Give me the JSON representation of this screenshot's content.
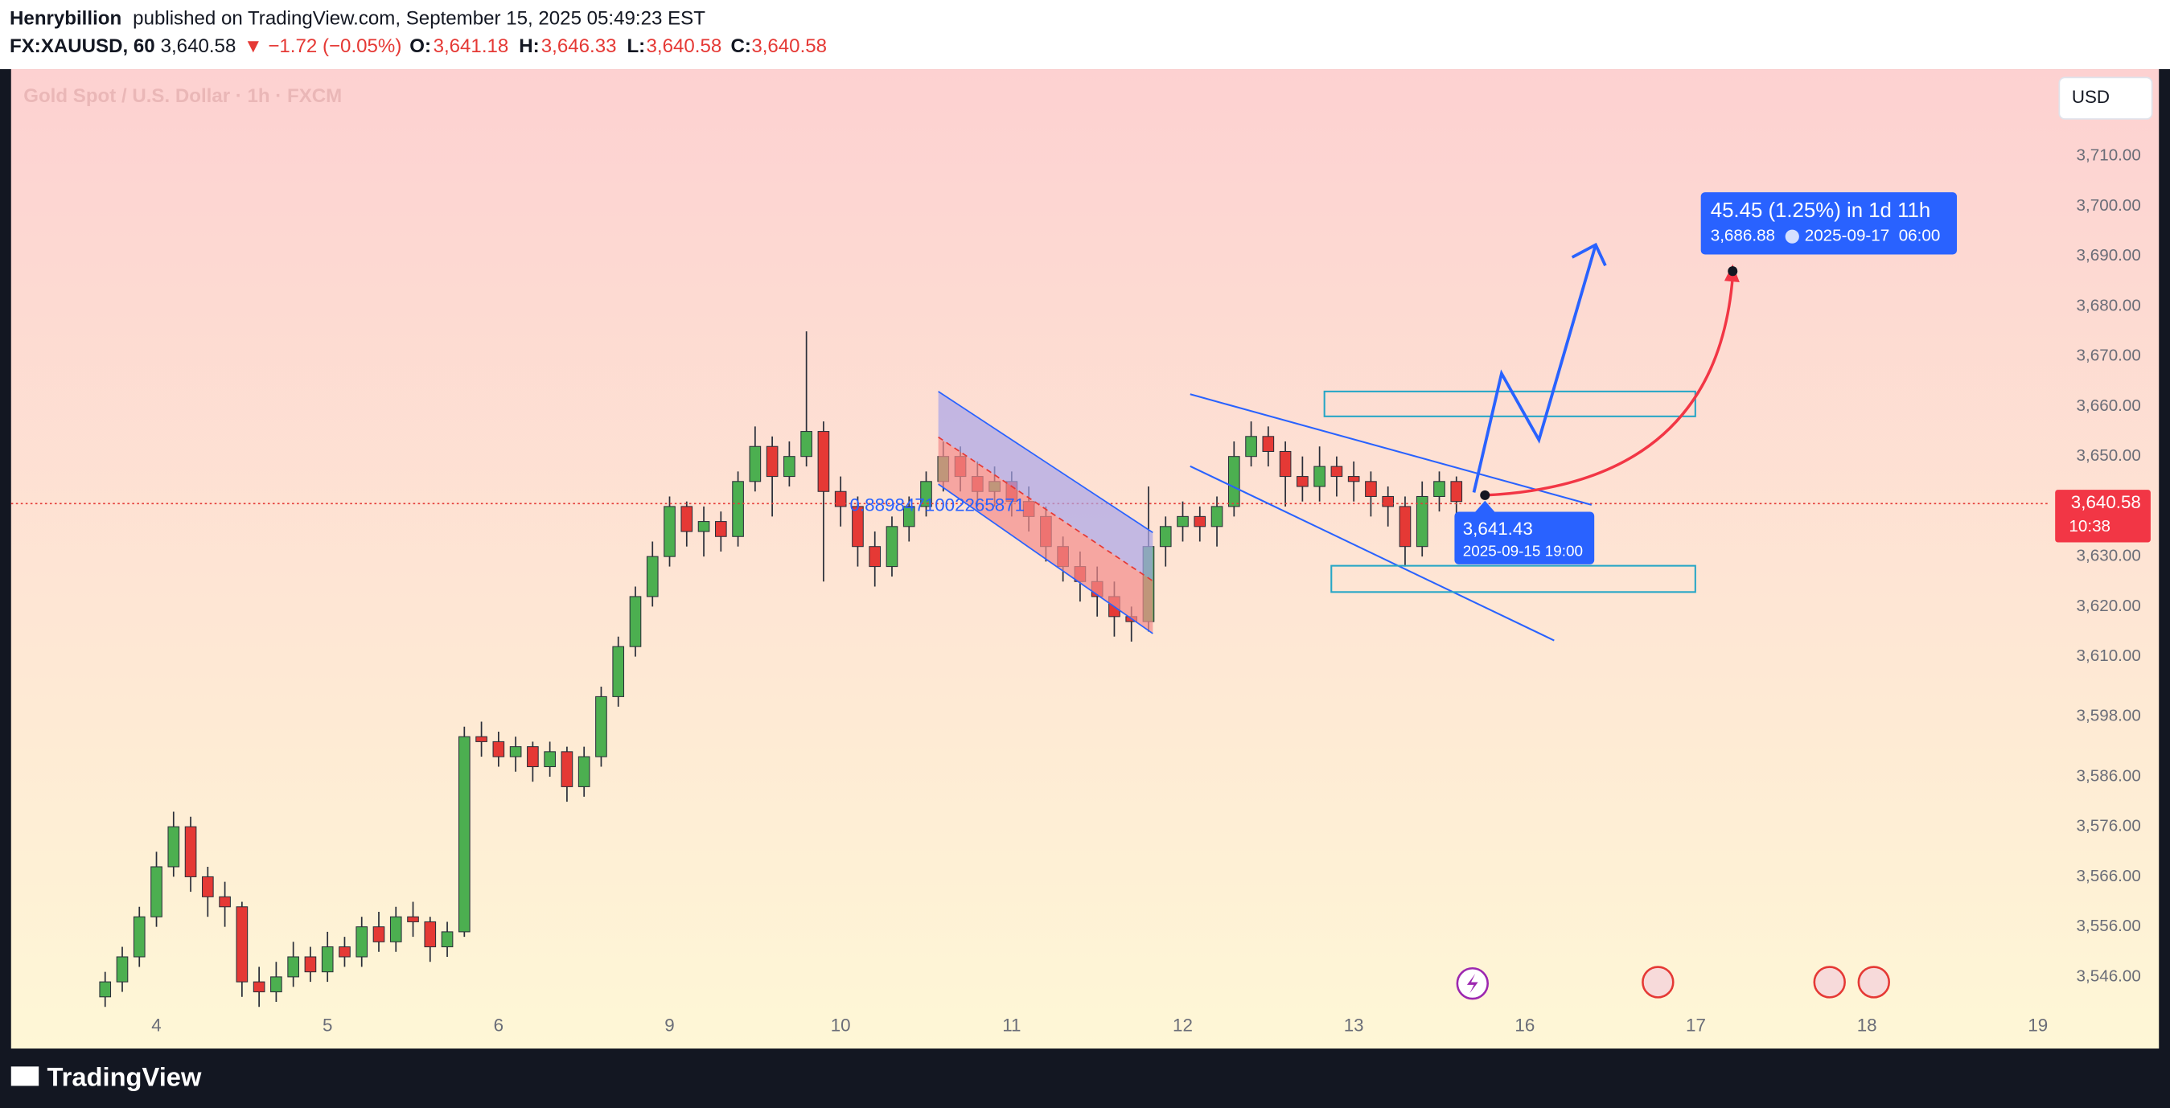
{
  "header": {
    "author": "Henrybillion",
    "published": "published on TradingView.com, September 15, 2025 05:49:23 EST",
    "symbol": "FX:XAUUSD, 60",
    "price": "3,640.58",
    "change": "▼ −1.72 (−0.05%)",
    "ohlc": [
      {
        "key": "O:",
        "value": "3,641.18"
      },
      {
        "key": "H:",
        "value": "3,646.33"
      },
      {
        "key": "L:",
        "value": "3,640.58"
      },
      {
        "key": "C:",
        "value": "3,640.58"
      }
    ]
  },
  "currency": "USD",
  "footer": "TradingView",
  "annotations": {
    "target": "45.45 (1.25%) in 1d 11h",
    "target_price": "3,686.88",
    "target_time": "2025-09-17  06:00",
    "point_price": "3,641.43",
    "point_time": "2025-09-15 19:00",
    "channel_label": "0.8898471002265871"
  },
  "chart_data": {
    "type": "candlestick",
    "title": "Gold Spot / U.S. Dollar · 1h · FXCM",
    "up_color": "#4caf50",
    "down_color": "#e53935",
    "wick_color": "#2a2e39",
    "grid": false,
    "xlim": [
      -0.85,
      11.06
    ],
    "ylim": [
      3540.8,
      3727.4
    ],
    "xticks": [
      {
        "value": 0,
        "label": "4"
      },
      {
        "value": 1,
        "label": "5"
      },
      {
        "value": 2,
        "label": "6"
      },
      {
        "value": 3,
        "label": "9"
      },
      {
        "value": 4,
        "label": "10"
      },
      {
        "value": 5,
        "label": "11"
      },
      {
        "value": 6,
        "label": "12"
      },
      {
        "value": 7,
        "label": "13"
      },
      {
        "value": 8,
        "label": "16"
      },
      {
        "value": 9,
        "label": "17"
      },
      {
        "value": 10,
        "label": "18"
      },
      {
        "value": 11,
        "label": "19"
      }
    ],
    "yticks": [
      {
        "value": 3546,
        "label": "3,546.00"
      },
      {
        "value": 3556,
        "label": "3,556.00"
      },
      {
        "value": 3566,
        "label": "3,566.00"
      },
      {
        "value": 3576,
        "label": "3,576.00"
      },
      {
        "value": 3586,
        "label": "3,586.00"
      },
      {
        "value": 3598,
        "label": "3,598.00"
      },
      {
        "value": 3610,
        "label": "3,610.00"
      },
      {
        "value": 3620,
        "label": "3,620.00"
      },
      {
        "value": 3630,
        "label": "3,630.00"
      },
      {
        "value": 3650,
        "label": "3,650.00"
      },
      {
        "value": 3660,
        "label": "3,660.00"
      },
      {
        "value": 3670,
        "label": "3,670.00"
      },
      {
        "value": 3680,
        "label": "3,680.00"
      },
      {
        "value": 3690,
        "label": "3,690.00"
      },
      {
        "value": 3700,
        "label": "3,700.00"
      },
      {
        "value": 3710,
        "label": "3,710.00"
      }
    ],
    "last_price": {
      "value": 3640.58,
      "label": "3,640.58"
    },
    "countdown": "10:38",
    "x": [
      -0.3,
      -0.2,
      -0.1,
      0,
      0.1,
      0.2,
      0.3,
      0.4,
      0.5,
      0.6,
      0.7,
      0.8,
      0.9,
      1,
      1.1,
      1.2,
      1.3,
      1.4,
      1.5,
      1.6,
      1.7,
      1.8,
      1.9,
      2,
      2.1,
      2.2,
      2.3,
      2.4,
      2.5,
      2.6,
      2.7,
      2.8,
      2.9,
      3,
      3.1,
      3.2,
      3.3,
      3.4,
      3.5,
      3.6,
      3.7,
      3.8,
      3.9,
      4,
      4.1,
      4.2,
      4.3,
      4.4,
      4.5,
      4.6,
      4.7,
      4.8,
      4.9,
      5,
      5.1,
      5.2,
      5.3,
      5.4,
      5.5,
      5.6,
      5.7,
      5.8,
      5.9,
      6,
      6.1,
      6.2,
      6.3,
      6.4,
      6.5,
      6.6,
      6.7,
      6.8,
      6.9,
      7,
      7.1,
      7.2,
      7.3,
      7.4,
      7.5,
      7.6
    ],
    "ohlc": [
      [
        3542,
        3547,
        3540,
        3545
      ],
      [
        3545,
        3552,
        3543,
        3550
      ],
      [
        3550,
        3560,
        3548,
        3558
      ],
      [
        3558,
        3571,
        3556,
        3568
      ],
      [
        3568,
        3579,
        3566,
        3576
      ],
      [
        3576,
        3578,
        3563,
        3566
      ],
      [
        3566,
        3568,
        3558,
        3562
      ],
      [
        3562,
        3565,
        3556,
        3560
      ],
      [
        3560,
        3561,
        3542,
        3545
      ],
      [
        3545,
        3548,
        3540,
        3543
      ],
      [
        3543,
        3549,
        3541,
        3546
      ],
      [
        3546,
        3553,
        3544,
        3550
      ],
      [
        3550,
        3552,
        3545,
        3547
      ],
      [
        3547,
        3555,
        3545,
        3552
      ],
      [
        3552,
        3554,
        3548,
        3550
      ],
      [
        3550,
        3558,
        3548,
        3556
      ],
      [
        3556,
        3559,
        3551,
        3553
      ],
      [
        3553,
        3560,
        3551,
        3558
      ],
      [
        3558,
        3561,
        3554,
        3557
      ],
      [
        3557,
        3558,
        3549,
        3552
      ],
      [
        3552,
        3557,
        3550,
        3555
      ],
      [
        3555,
        3596,
        3554,
        3594
      ],
      [
        3594,
        3597,
        3590,
        3593
      ],
      [
        3593,
        3595,
        3588,
        3590
      ],
      [
        3590,
        3594,
        3587,
        3592
      ],
      [
        3592,
        3593,
        3585,
        3588
      ],
      [
        3588,
        3593,
        3586,
        3591
      ],
      [
        3591,
        3592,
        3581,
        3584
      ],
      [
        3584,
        3592,
        3582,
        3590
      ],
      [
        3590,
        3604,
        3588,
        3602
      ],
      [
        3602,
        3614,
        3600,
        3612
      ],
      [
        3612,
        3624,
        3610,
        3622
      ],
      [
        3622,
        3633,
        3620,
        3630
      ],
      [
        3630,
        3642,
        3628,
        3640
      ],
      [
        3640,
        3641,
        3632,
        3635
      ],
      [
        3635,
        3640,
        3630,
        3637
      ],
      [
        3637,
        3639,
        3631,
        3634
      ],
      [
        3634,
        3647,
        3632,
        3645
      ],
      [
        3645,
        3656,
        3643,
        3652
      ],
      [
        3652,
        3654,
        3638,
        3646
      ],
      [
        3646,
        3653,
        3644,
        3650
      ],
      [
        3650,
        3675,
        3648,
        3655
      ],
      [
        3655,
        3657,
        3625,
        3643
      ],
      [
        3643,
        3646,
        3636,
        3640
      ],
      [
        3640,
        3642,
        3628,
        3632
      ],
      [
        3632,
        3635,
        3624,
        3628
      ],
      [
        3628,
        3638,
        3626,
        3636
      ],
      [
        3636,
        3642,
        3633,
        3640
      ],
      [
        3640,
        3647,
        3638,
        3645
      ],
      [
        3645,
        3653,
        3643,
        3650
      ],
      [
        3650,
        3652,
        3643,
        3646
      ],
      [
        3646,
        3649,
        3640,
        3643
      ],
      [
        3643,
        3648,
        3640,
        3645
      ],
      [
        3645,
        3647,
        3638,
        3641
      ],
      [
        3641,
        3644,
        3635,
        3638
      ],
      [
        3638,
        3640,
        3629,
        3632
      ],
      [
        3632,
        3634,
        3625,
        3628
      ],
      [
        3628,
        3631,
        3621,
        3625
      ],
      [
        3625,
        3628,
        3618,
        3622
      ],
      [
        3622,
        3625,
        3614,
        3618
      ],
      [
        3618,
        3620,
        3613,
        3617
      ],
      [
        3617,
        3644,
        3615,
        3632
      ],
      [
        3632,
        3638,
        3628,
        3636
      ],
      [
        3636,
        3641,
        3633,
        3638
      ],
      [
        3638,
        3640,
        3633,
        3636
      ],
      [
        3636,
        3642,
        3632,
        3640
      ],
      [
        3640,
        3653,
        3638,
        3650
      ],
      [
        3650,
        3657,
        3648,
        3654
      ],
      [
        3654,
        3656,
        3648,
        3651
      ],
      [
        3651,
        3653,
        3640,
        3646
      ],
      [
        3646,
        3650,
        3641,
        3644
      ],
      [
        3644,
        3652,
        3641,
        3648
      ],
      [
        3648,
        3650,
        3642,
        3646
      ],
      [
        3646,
        3649,
        3641,
        3645
      ],
      [
        3645,
        3647,
        3638,
        3642
      ],
      [
        3642,
        3644,
        3636,
        3640
      ],
      [
        3640,
        3642,
        3628,
        3632
      ],
      [
        3632,
        3645,
        3630,
        3642
      ],
      [
        3642,
        3647,
        3639,
        3645
      ],
      [
        3645,
        3646,
        3638,
        3641
      ]
    ]
  }
}
